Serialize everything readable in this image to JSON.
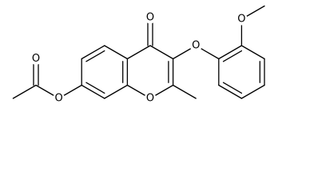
{
  "molecule": {
    "atom_labels": [
      "O",
      "O",
      "O",
      "O",
      "O",
      "O"
    ]
  }
}
